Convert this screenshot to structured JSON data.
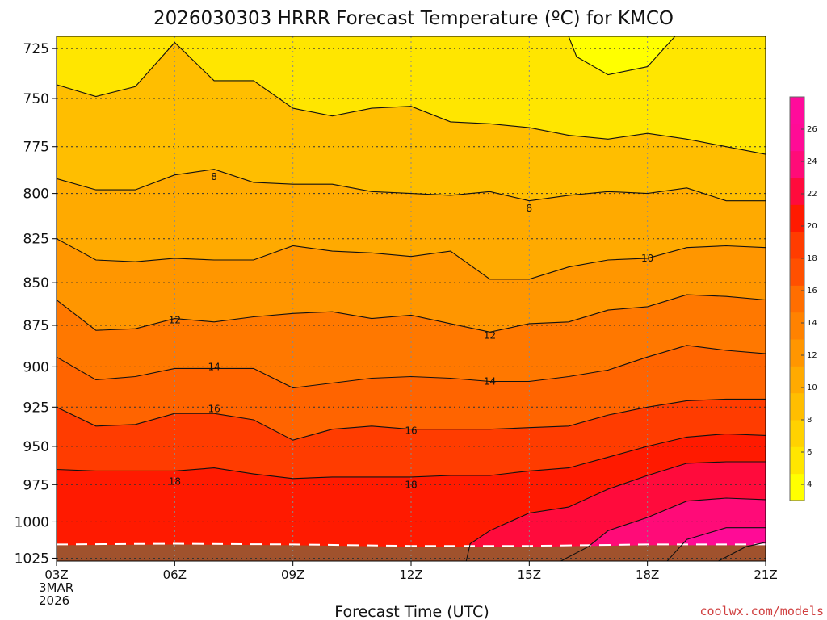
{
  "chart_data": {
    "type": "heatmap",
    "subtype": "filled-contour",
    "title": "2026030303 HRRR Forecast Temperature (ºC) for KMCO",
    "xlabel": "Forecast Time (UTC)",
    "x_tick_labels": [
      "03Z",
      "06Z",
      "09Z",
      "12Z",
      "15Z",
      "18Z",
      "21Z"
    ],
    "x_first_tick_extra": [
      "3MAR",
      "2026"
    ],
    "x_hours": [
      3,
      4,
      5,
      6,
      7,
      8,
      9,
      10,
      11,
      12,
      13,
      14,
      15,
      16,
      17,
      18,
      19,
      20,
      21
    ],
    "y_tick_labels": [
      "725",
      "750",
      "775",
      "800",
      "825",
      "850",
      "875",
      "900",
      "925",
      "950",
      "975",
      "1000",
      "1025"
    ],
    "ylim": [
      1027,
      719
    ],
    "y_scale": "log",
    "grid": "dotted",
    "credit": "coolwx.com/models",
    "contour_labels": [
      {
        "text": "8",
        "hour": 7,
        "p": 791
      },
      {
        "text": "8",
        "hour": 15,
        "p": 808
      },
      {
        "text": "10",
        "hour": 18,
        "p": 836
      },
      {
        "text": "12",
        "hour": 6,
        "p": 872
      },
      {
        "text": "12",
        "hour": 14,
        "p": 881
      },
      {
        "text": "14",
        "hour": 7,
        "p": 900
      },
      {
        "text": "14",
        "hour": 14,
        "p": 909
      },
      {
        "text": "16",
        "hour": 7,
        "p": 926
      },
      {
        "text": "16",
        "hour": 12,
        "p": 940
      },
      {
        "text": "18",
        "hour": 6,
        "p": 973
      },
      {
        "text": "18",
        "hour": 12,
        "p": 975
      }
    ],
    "contours": [
      {
        "level": 4,
        "points": [
          [
            16,
            719
          ],
          [
            16.2,
            729
          ],
          [
            17,
            738
          ],
          [
            18,
            734
          ],
          [
            18.7,
            719
          ]
        ]
      },
      {
        "level": 6,
        "points": [
          [
            3,
            743
          ],
          [
            4,
            749
          ],
          [
            5,
            744
          ],
          [
            6,
            722
          ],
          [
            7,
            741
          ],
          [
            8,
            741
          ],
          [
            9,
            755
          ],
          [
            10,
            759
          ],
          [
            11,
            755
          ],
          [
            12,
            754
          ],
          [
            13,
            762
          ],
          [
            14,
            763
          ],
          [
            15,
            765
          ],
          [
            16,
            769
          ],
          [
            17,
            771
          ],
          [
            18,
            768
          ],
          [
            19,
            771
          ],
          [
            20,
            775
          ],
          [
            21,
            779
          ]
        ]
      },
      {
        "level": 8,
        "points": [
          [
            3,
            792
          ],
          [
            4,
            798
          ],
          [
            5,
            798
          ],
          [
            6,
            790
          ],
          [
            7,
            787
          ],
          [
            8,
            794
          ],
          [
            9,
            795
          ],
          [
            10,
            795
          ],
          [
            11,
            799
          ],
          [
            12,
            800
          ],
          [
            13,
            801
          ],
          [
            14,
            799
          ],
          [
            15,
            804
          ],
          [
            16,
            801
          ],
          [
            17,
            799
          ],
          [
            18,
            800
          ],
          [
            19,
            797
          ],
          [
            20,
            804
          ],
          [
            21,
            804
          ]
        ]
      },
      {
        "level": 10,
        "points": [
          [
            3,
            825
          ],
          [
            4,
            837
          ],
          [
            5,
            838
          ],
          [
            6,
            836
          ],
          [
            7,
            837
          ],
          [
            8,
            837
          ],
          [
            9,
            829
          ],
          [
            10,
            832
          ],
          [
            11,
            833
          ],
          [
            12,
            835
          ],
          [
            13,
            832
          ],
          [
            14,
            848
          ],
          [
            15,
            848
          ],
          [
            16,
            841
          ],
          [
            17,
            837
          ],
          [
            18,
            836
          ],
          [
            19,
            830
          ],
          [
            20,
            829
          ],
          [
            21,
            830
          ]
        ]
      },
      {
        "level": 12,
        "points": [
          [
            3,
            860
          ],
          [
            4,
            878
          ],
          [
            5,
            877
          ],
          [
            6,
            871
          ],
          [
            7,
            873
          ],
          [
            8,
            870
          ],
          [
            9,
            868
          ],
          [
            10,
            867
          ],
          [
            11,
            871
          ],
          [
            12,
            869
          ],
          [
            13,
            874
          ],
          [
            14,
            879
          ],
          [
            15,
            874
          ],
          [
            16,
            873
          ],
          [
            17,
            866
          ],
          [
            18,
            864
          ],
          [
            19,
            857
          ],
          [
            20,
            858
          ],
          [
            21,
            860
          ]
        ]
      },
      {
        "level": 14,
        "points": [
          [
            3,
            894
          ],
          [
            4,
            908
          ],
          [
            5,
            906
          ],
          [
            6,
            901
          ],
          [
            7,
            901
          ],
          [
            8,
            901
          ],
          [
            9,
            913
          ],
          [
            10,
            910
          ],
          [
            11,
            907
          ],
          [
            12,
            906
          ],
          [
            13,
            907
          ],
          [
            14,
            909
          ],
          [
            15,
            909
          ],
          [
            16,
            906
          ],
          [
            17,
            902
          ],
          [
            18,
            894
          ],
          [
            19,
            887
          ],
          [
            20,
            890
          ],
          [
            21,
            892
          ]
        ]
      },
      {
        "level": 16,
        "points": [
          [
            3,
            925
          ],
          [
            4,
            937
          ],
          [
            5,
            936
          ],
          [
            6,
            929
          ],
          [
            7,
            929
          ],
          [
            8,
            933
          ],
          [
            9,
            946
          ],
          [
            10,
            939
          ],
          [
            11,
            937
          ],
          [
            12,
            939
          ],
          [
            13,
            939
          ],
          [
            14,
            939
          ],
          [
            15,
            938
          ],
          [
            16,
            937
          ],
          [
            17,
            930
          ],
          [
            18,
            925
          ],
          [
            19,
            921
          ],
          [
            20,
            920
          ],
          [
            21,
            920
          ]
        ]
      },
      {
        "level": 18,
        "points": [
          [
            3,
            965
          ],
          [
            4,
            966
          ],
          [
            5,
            966
          ],
          [
            6,
            966
          ],
          [
            7,
            964
          ],
          [
            8,
            968
          ],
          [
            9,
            971
          ],
          [
            10,
            970
          ],
          [
            11,
            970
          ],
          [
            12,
            970
          ],
          [
            13,
            969
          ],
          [
            14,
            969
          ],
          [
            15,
            966
          ],
          [
            16,
            964
          ],
          [
            17,
            957
          ],
          [
            18,
            950
          ],
          [
            19,
            944
          ],
          [
            20,
            942
          ],
          [
            21,
            943
          ]
        ]
      },
      {
        "level": 20,
        "points": [
          [
            13.4,
            1027
          ],
          [
            13.5,
            1015
          ],
          [
            14,
            1006
          ],
          [
            15,
            994
          ],
          [
            16,
            990
          ],
          [
            17,
            978
          ],
          [
            18,
            969
          ],
          [
            19,
            961
          ],
          [
            20,
            960
          ],
          [
            21,
            960
          ]
        ]
      },
      {
        "level": 22,
        "points": [
          [
            15.8,
            1027
          ],
          [
            16.5,
            1017
          ],
          [
            17,
            1006
          ],
          [
            18,
            997
          ],
          [
            19,
            986
          ],
          [
            20,
            984
          ],
          [
            21,
            985
          ]
        ]
      },
      {
        "level": 24,
        "points": [
          [
            18.5,
            1027
          ],
          [
            19,
            1012
          ],
          [
            20,
            1004
          ],
          [
            21,
            1004
          ]
        ]
      },
      {
        "level": 26,
        "points": [
          [
            19.8,
            1027
          ],
          [
            20.5,
            1017
          ],
          [
            21,
            1014
          ]
        ]
      }
    ],
    "surface_pressure": [
      [
        3,
        1016
      ],
      [
        6,
        1015.5
      ],
      [
        9,
        1016
      ],
      [
        12,
        1017
      ],
      [
        15,
        1017
      ],
      [
        18,
        1016
      ],
      [
        21,
        1016
      ]
    ],
    "colorbar": {
      "ticks": [
        4,
        6,
        8,
        10,
        12,
        14,
        16,
        18,
        20,
        22,
        24,
        26
      ],
      "range": [
        3,
        28
      ],
      "colors": [
        "#ffff00",
        "#ffe600",
        "#ffd200",
        "#ffbe00",
        "#ffaa00",
        "#ff9600",
        "#ff8200",
        "#ff6e00",
        "#ff5000",
        "#ff3c00",
        "#ff1a00",
        "#ff0b3c",
        "#ff0b78",
        "#ff0b96",
        "#ff0b9b"
      ]
    },
    "band_colors": [
      {
        "below_level": 4,
        "color": "#ffff00"
      },
      {
        "below_level": 6,
        "color": "#ffe600"
      },
      {
        "below_level": 8,
        "color": "#ffbe00"
      },
      {
        "below_level": 10,
        "color": "#ffaa00"
      },
      {
        "below_level": 12,
        "color": "#ff9600"
      },
      {
        "below_level": 14,
        "color": "#ff7800"
      },
      {
        "below_level": 16,
        "color": "#ff6400"
      },
      {
        "below_level": 18,
        "color": "#ff3c00"
      },
      {
        "below_level": 20,
        "color": "#ff1a00"
      },
      {
        "below_level": 22,
        "color": "#ff0b3c"
      },
      {
        "below_level": 24,
        "color": "#ff0b78"
      },
      {
        "below_level": 26,
        "color": "#ff0b96"
      },
      {
        "below_level": 99,
        "color": "#ff0b9b"
      }
    ],
    "ground_color": "#a0522d"
  }
}
